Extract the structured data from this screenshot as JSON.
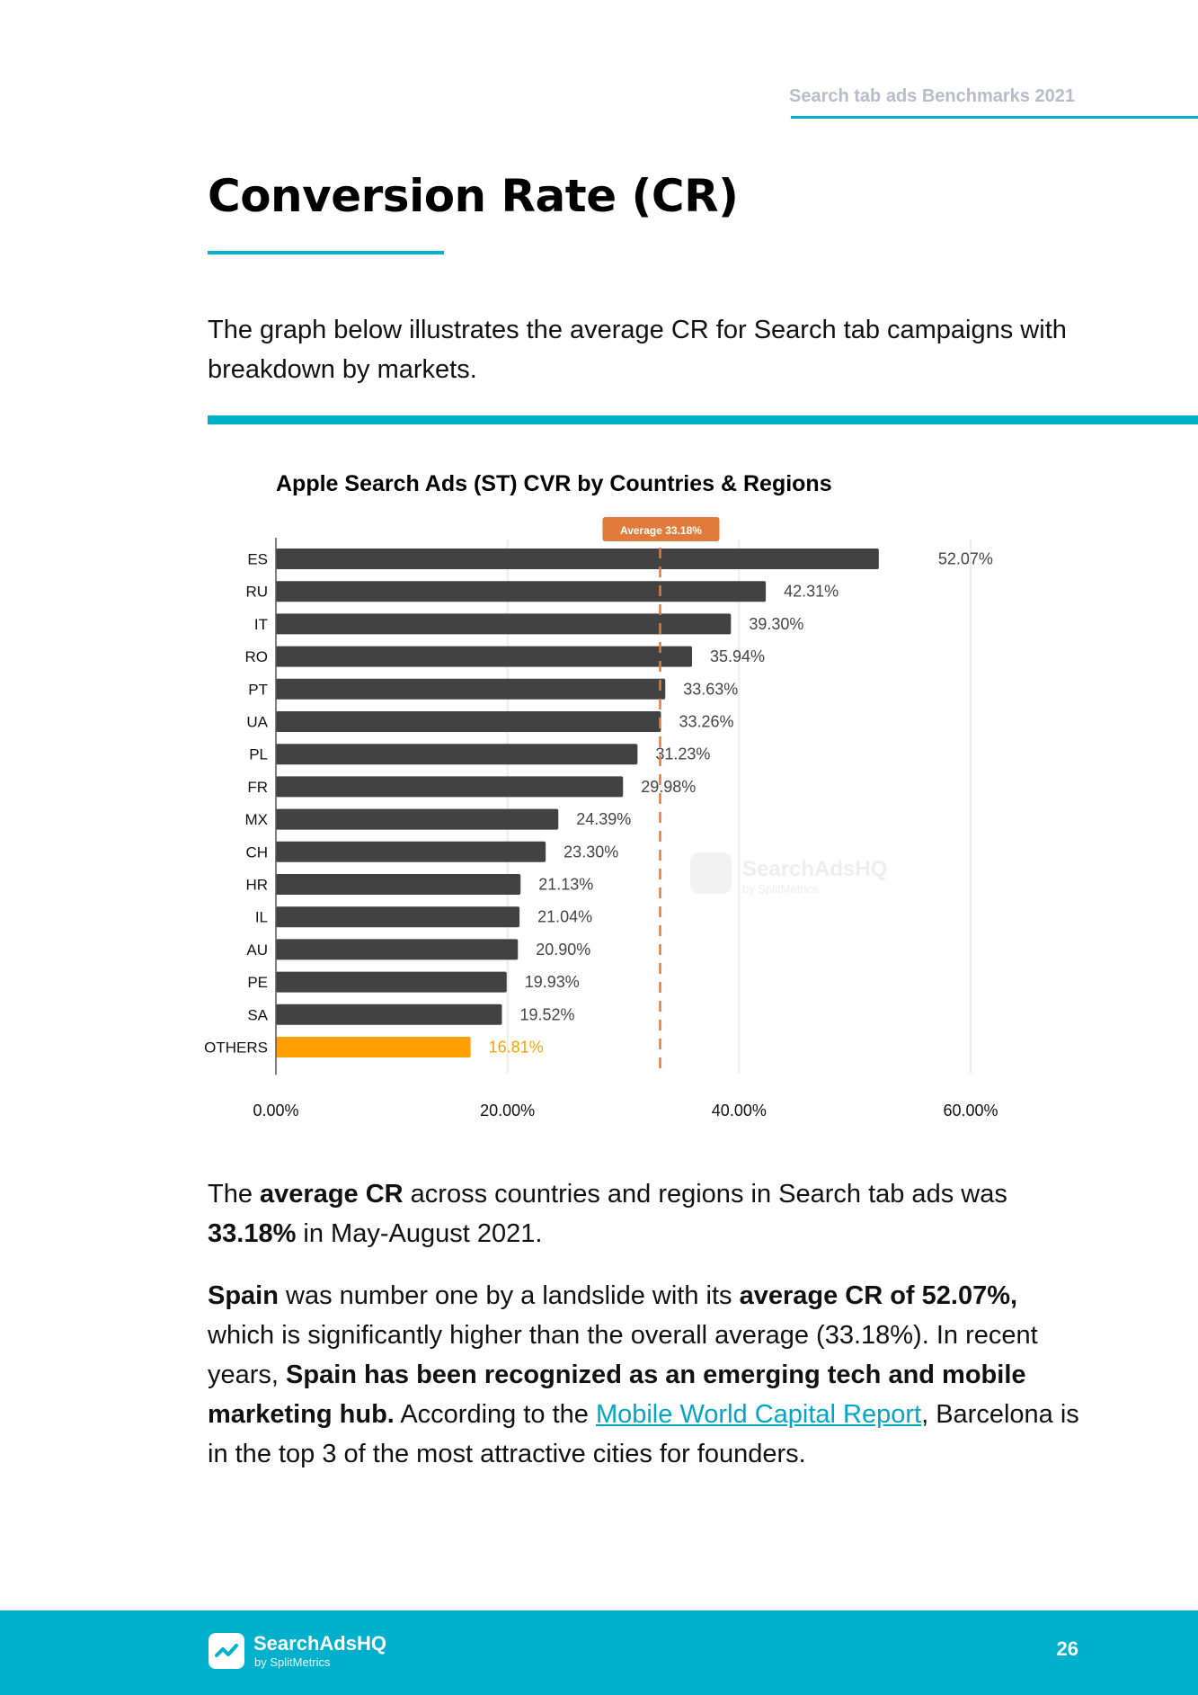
{
  "header": {
    "running_title": "Search tab ads Benchmarks 2021"
  },
  "title": "Conversion Rate (CR)",
  "intro": "The graph below illustrates the average CR for Search tab campaigns with breakdown by markets.",
  "chart_data": {
    "type": "bar",
    "orientation": "horizontal",
    "title": "Apple Search Ads (ST) CVR by Countries & Regions",
    "categories": [
      "ES",
      "RU",
      "IT",
      "RO",
      "PT",
      "UA",
      "PL",
      "FR",
      "MX",
      "CH",
      "HR",
      "IL",
      "AU",
      "PE",
      "SA",
      "OTHERS"
    ],
    "values": [
      52.07,
      42.31,
      39.3,
      35.94,
      33.63,
      33.26,
      31.23,
      29.98,
      24.39,
      23.3,
      21.13,
      21.04,
      20.9,
      19.93,
      19.52,
      16.81
    ],
    "value_labels": [
      "52.07%",
      "42.31%",
      "39.30%",
      "35.94%",
      "33.63%",
      "33.26%",
      "31.23%",
      "29.98%",
      "24.39%",
      "23.30%",
      "21.13%",
      "21.04%",
      "20.90%",
      "19.93%",
      "19.52%",
      "16.81%"
    ],
    "xlim": [
      0,
      60
    ],
    "x_ticks": [
      0,
      20,
      40,
      60
    ],
    "x_tick_labels": [
      "0.00%",
      "20.00%",
      "40.00%",
      "60.00%"
    ],
    "xlabel": "",
    "ylabel": "",
    "grid": true,
    "average": {
      "value": 33.18,
      "label": "Average 33.18%"
    },
    "watermark": {
      "brand": "SearchAdsHQ",
      "sub": "by SplitMetrics"
    },
    "colors": {
      "bar": "#424242",
      "highlight": "#ff9f00",
      "average_line": "#e07b3c",
      "grid": "#ececec",
      "axis": "#555555",
      "accent": "#00b0cc"
    },
    "highlight_category": "OTHERS"
  },
  "summary": {
    "p1": "The ",
    "b1": "average CR",
    "p2": " across countries and regions in Search tab ads was ",
    "b2": "33.18%",
    "p3": " in May-August 2021."
  },
  "detail": {
    "b1": "Spain",
    "p1": " was number one by a landslide with its ",
    "b2": "average CR of 52.07%,",
    "p2": " which is significantly higher than the overall average (33.18%). In recent years, ",
    "b3": "Spain has been recognized as an emerging tech and mobile marketing hub.",
    "p3": " According to the ",
    "link": "Mobile World Capital Report",
    "p4": ", Barcelona is in the top 3 of the most attractive cities for founders."
  },
  "footer": {
    "brand": "SearchAdsHQ",
    "sub": "by SplitMetrics",
    "logo_icon": "chart-check-icon",
    "page_number": "26"
  }
}
